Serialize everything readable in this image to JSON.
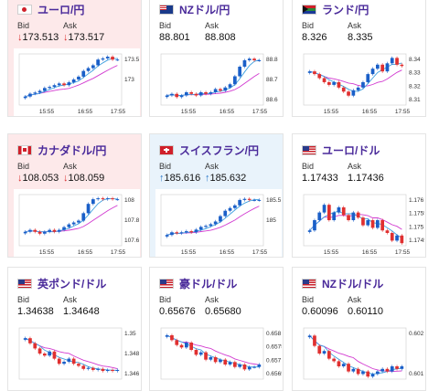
{
  "cards": [
    {
      "title": "ユーロ/円",
      "bid_label": "Bid",
      "ask_label": "Ask",
      "bid": "173.513",
      "ask": "173.517",
      "direction": "down",
      "flag": "jp",
      "chart_data": {
        "type": "candlestick",
        "x_ticks": [
          "15:55",
          "16:55",
          "17:55"
        ],
        "y_ticks": [
          "173.5",
          "173",
          ""
        ],
        "ylim": [
          172.7,
          173.6
        ],
        "closes": [
          172.85,
          172.9,
          172.92,
          172.95,
          173.0,
          173.02,
          173.05,
          173.08,
          173.05,
          173.1,
          173.15,
          173.2,
          173.3,
          173.35,
          173.4,
          173.5,
          173.52,
          173.55,
          173.5,
          173.5
        ]
      }
    },
    {
      "title": "NZドル/円",
      "bid_label": "Bid",
      "ask_label": "Ask",
      "bid": "88.801",
      "ask": "88.808",
      "direction": "none",
      "flag": "nz",
      "chart_data": {
        "type": "candlestick",
        "x_ticks": [
          "15:55",
          "16:55",
          "17:55"
        ],
        "y_ticks": [
          "88.8",
          "88.7",
          "88.6"
        ],
        "ylim": [
          88.52,
          88.84
        ],
        "closes": [
          88.58,
          88.59,
          88.57,
          88.58,
          88.6,
          88.59,
          88.58,
          88.6,
          88.59,
          88.6,
          88.62,
          88.61,
          88.63,
          88.65,
          88.7,
          88.76,
          88.8,
          88.81,
          88.8,
          88.8
        ]
      }
    },
    {
      "title": "ランド/円",
      "bid_label": "Bid",
      "ask_label": "Ask",
      "bid": "8.326",
      "ask": "8.335",
      "direction": "none",
      "flag": "za",
      "chart_data": {
        "type": "candlestick",
        "x_ticks": [
          "15:55",
          "16:55",
          "17:55"
        ],
        "y_ticks": [
          "8.34",
          "8.33",
          "8.32",
          "8.31"
        ],
        "ylim": [
          8.305,
          8.343
        ],
        "closes": [
          8.33,
          8.328,
          8.325,
          8.322,
          8.32,
          8.322,
          8.318,
          8.315,
          8.312,
          8.316,
          8.318,
          8.322,
          8.328,
          8.332,
          8.335,
          8.33,
          8.336,
          8.34,
          8.335,
          8.334
        ]
      }
    },
    {
      "title": "カナダドル/円",
      "bid_label": "Bid",
      "ask_label": "Ask",
      "bid": "108.053",
      "ask": "108.059",
      "direction": "down",
      "flag": "ca",
      "chart_data": {
        "type": "candlestick",
        "x_ticks": [
          "15:55",
          "16:55",
          "17:55"
        ],
        "y_ticks": [
          "108",
          "107.8",
          "107.6"
        ],
        "ylim": [
          107.55,
          108.1
        ],
        "closes": [
          107.7,
          107.72,
          107.7,
          107.68,
          107.7,
          107.72,
          107.7,
          107.72,
          107.75,
          107.78,
          107.8,
          107.82,
          107.9,
          108.0,
          108.05,
          108.06,
          108.05,
          108.06,
          108.05,
          108.05
        ]
      }
    },
    {
      "title": "スイスフラン/円",
      "bid_label": "Bid",
      "ask_label": "Ask",
      "bid": "185.616",
      "ask": "185.632",
      "direction": "up",
      "flag": "ch",
      "chart_data": {
        "type": "candlestick",
        "x_ticks": [
          "15:55",
          "16:55",
          "17:55"
        ],
        "y_ticks": [
          "185.5",
          "185",
          ""
        ],
        "ylim": [
          184.75,
          185.7
        ],
        "closes": [
          184.95,
          185.0,
          184.98,
          185.0,
          185.02,
          185.0,
          185.05,
          185.1,
          185.12,
          185.15,
          185.2,
          185.3,
          185.4,
          185.45,
          185.5,
          185.6,
          185.62,
          185.6,
          185.6,
          185.6
        ]
      }
    },
    {
      "title": "ユーロ/ドル",
      "bid_label": "Bid",
      "ask_label": "Ask",
      "bid": "1.17433",
      "ask": "1.17436",
      "direction": "none",
      "flag": "us",
      "chart_data": {
        "type": "candlestick",
        "x_ticks": [
          "15:55",
          "16:55",
          "17:55"
        ],
        "y_ticks": [
          "1.176",
          "1.1755",
          "1.175",
          "1.1745"
        ],
        "ylim": [
          1.1742,
          1.1762
        ],
        "closes": [
          1.1748,
          1.1752,
          1.1755,
          1.1758,
          1.1752,
          1.1755,
          1.1757,
          1.1754,
          1.1752,
          1.1755,
          1.1753,
          1.175,
          1.1752,
          1.1749,
          1.1752,
          1.1748,
          1.1747,
          1.1744,
          1.1746,
          1.1743
        ]
      }
    },
    {
      "title": "英ポンド/ドル",
      "bid_label": "Bid",
      "ask_label": "Ask",
      "bid": "1.34638",
      "ask": "1.34648",
      "direction": "none",
      "flag": "us",
      "chart_data": {
        "type": "candlestick",
        "x_ticks": [
          "",
          "",
          ""
        ],
        "y_ticks": [
          "1.35",
          "1.348",
          "1.346"
        ],
        "ylim": [
          1.3455,
          1.3505
        ],
        "closes": [
          1.3495,
          1.349,
          1.3485,
          1.348,
          1.3478,
          1.3482,
          1.3475,
          1.347,
          1.3472,
          1.3475,
          1.347,
          1.3468,
          1.3465,
          1.3466,
          1.3464,
          1.3465,
          1.3463,
          1.3464,
          1.3463,
          1.3464
        ]
      }
    },
    {
      "title": "豪ドル/ドル",
      "bid_label": "Bid",
      "ask_label": "Ask",
      "bid": "0.65676",
      "ask": "0.65680",
      "direction": "none",
      "flag": "us",
      "chart_data": {
        "type": "candlestick",
        "x_ticks": [
          "",
          "",
          ""
        ],
        "y_ticks": [
          "0.658",
          "0.6575",
          "0.657",
          "0.6565"
        ],
        "ylim": [
          0.6562,
          0.6583
        ],
        "closes": [
          0.658,
          0.6578,
          0.6576,
          0.6575,
          0.6577,
          0.6574,
          0.6572,
          0.6573,
          0.657,
          0.6571,
          0.6569,
          0.657,
          0.6568,
          0.6569,
          0.6567,
          0.6568,
          0.6566,
          0.6567,
          0.6567,
          0.6568
        ]
      }
    },
    {
      "title": "NZドル/ドル",
      "bid_label": "Bid",
      "ask_label": "Ask",
      "bid": "0.60096",
      "ask": "0.60110",
      "direction": "none",
      "flag": "us",
      "chart_data": {
        "type": "candlestick",
        "x_ticks": [
          "",
          "",
          ""
        ],
        "y_ticks": [
          "0.602",
          "0.601"
        ],
        "ylim": [
          0.6005,
          0.6025
        ],
        "closes": [
          0.6022,
          0.6018,
          0.6015,
          0.6016,
          0.6013,
          0.6012,
          0.601,
          0.6011,
          0.6008,
          0.6009,
          0.6007,
          0.6008,
          0.6006,
          0.6007,
          0.6008,
          0.6009,
          0.6008,
          0.601,
          0.6009,
          0.601
        ]
      }
    }
  ],
  "colors": {
    "up_candle": "#1a5fc8",
    "down_candle": "#e03030",
    "ma_pink": "#d23ad0",
    "ma_blue": "#3fa0e0",
    "title": "#4a2a9a"
  }
}
